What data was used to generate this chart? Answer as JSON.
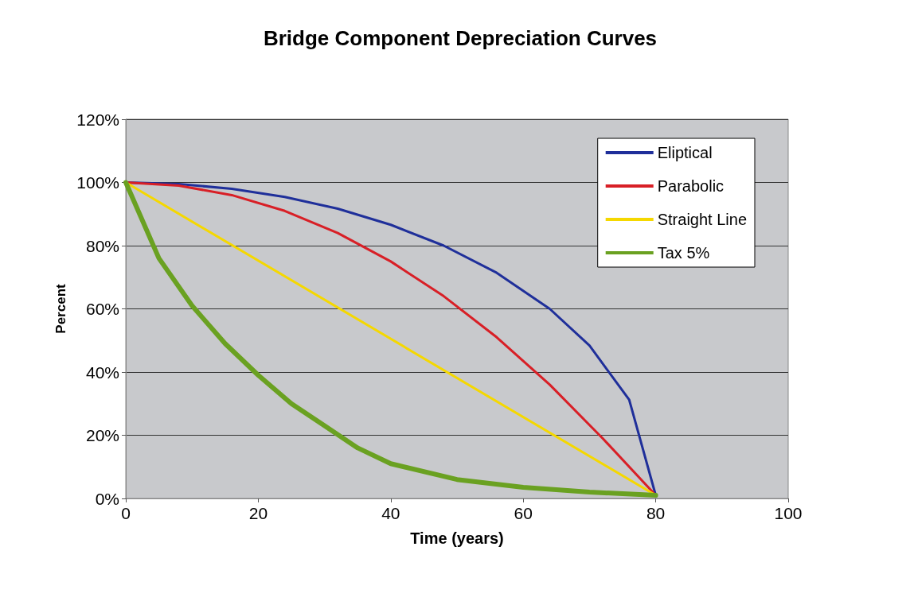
{
  "chart_data": {
    "type": "line",
    "title": "Bridge Component Depreciation Curves",
    "xlabel": "Time (years)",
    "ylabel": "Percent",
    "xlim": [
      0,
      100
    ],
    "xticks": [
      0,
      20,
      40,
      60,
      80,
      100
    ],
    "ylim": [
      0,
      120
    ],
    "yticks": [
      {
        "value": 0,
        "label": "0%"
      },
      {
        "value": 20,
        "label": "20%"
      },
      {
        "value": 40,
        "label": "40%"
      },
      {
        "value": 60,
        "label": "60%"
      },
      {
        "value": 80,
        "label": "80%"
      },
      {
        "value": 100,
        "label": "100%"
      },
      {
        "value": 120,
        "label": "120%"
      }
    ],
    "grid": "y",
    "legend": "top right",
    "marker": "none",
    "line_style": "solid",
    "series": [
      {
        "name": "Eliptical",
        "color": "#1f2f9a",
        "x": [
          0,
          8,
          16,
          24,
          32,
          40,
          48,
          56,
          64,
          70,
          76,
          80
        ],
        "values": [
          100,
          99.5,
          98,
          95.4,
          91.7,
          86.6,
          80,
          71.4,
          60,
          48.4,
          31.2,
          1
        ]
      },
      {
        "name": "Parabolic",
        "color": "#d81f26",
        "x": [
          0,
          8,
          16,
          24,
          32,
          40,
          48,
          56,
          64,
          72,
          80
        ],
        "values": [
          100,
          99,
          96,
          91,
          84,
          75,
          64,
          51,
          36,
          19,
          1
        ]
      },
      {
        "name": "Straight Line",
        "color": "#f5d800",
        "x": [
          0,
          80
        ],
        "values": [
          100,
          1
        ]
      },
      {
        "name": "Tax 5%",
        "color": "#6aa121",
        "x": [
          0,
          5,
          10,
          15,
          20,
          25,
          30,
          35,
          40,
          50,
          60,
          70,
          80
        ],
        "values": [
          100,
          76,
          61,
          49,
          39,
          30,
          23,
          16,
          11,
          6,
          3.5,
          2,
          1
        ]
      }
    ]
  }
}
